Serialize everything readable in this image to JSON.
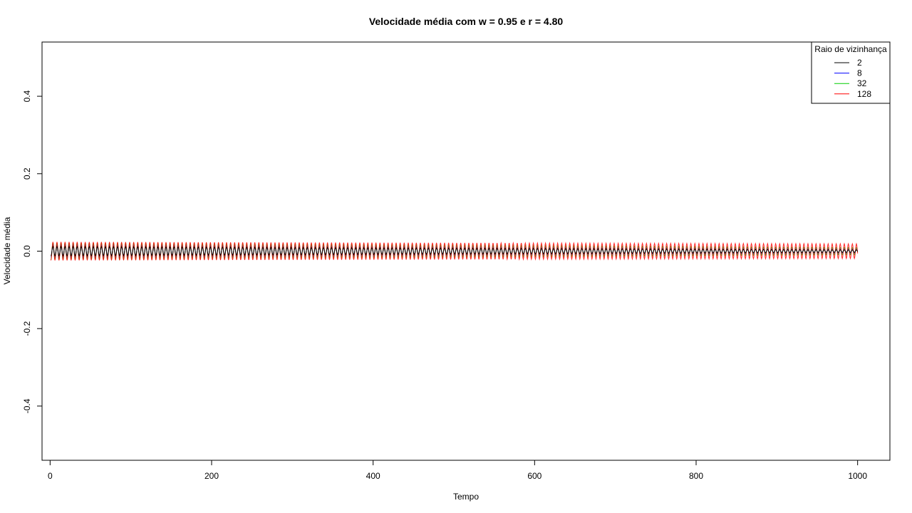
{
  "chart_data": {
    "type": "line",
    "title": "Velocidade média com w = 0.95 e r = 4.80",
    "xlabel": "Tempo",
    "ylabel": "Velocidade média",
    "xlim": [
      -10,
      1040
    ],
    "ylim": [
      -0.54,
      0.54
    ],
    "x_ticks": [
      0,
      200,
      400,
      600,
      800,
      1000
    ],
    "x_tick_labels": [
      "0",
      "200",
      "400",
      "600",
      "800",
      "1000"
    ],
    "y_ticks": [
      -0.4,
      -0.2,
      0.0,
      0.2,
      0.4
    ],
    "y_tick_labels": [
      "-0.4",
      "-0.2",
      "0.0",
      "0.2",
      "0.4"
    ],
    "grid": false,
    "legend": {
      "title": "Raio de vizinhança",
      "position": "top-right"
    },
    "x_range": [
      1,
      1000
    ],
    "oscillation_period": 5,
    "series": [
      {
        "name": "2",
        "color": "#000000",
        "amplitude_start": 0.012,
        "amplitude_end": 0.003
      },
      {
        "name": "8",
        "color": "#0000ff",
        "amplitude_start": 0.016,
        "amplitude_end": 0.005
      },
      {
        "name": "32",
        "color": "#00cd00",
        "amplitude_start": 0.022,
        "amplitude_end": 0.009
      },
      {
        "name": "128",
        "color": "#ff0000",
        "amplitude_start": 0.024,
        "amplitude_end": 0.019
      }
    ]
  }
}
